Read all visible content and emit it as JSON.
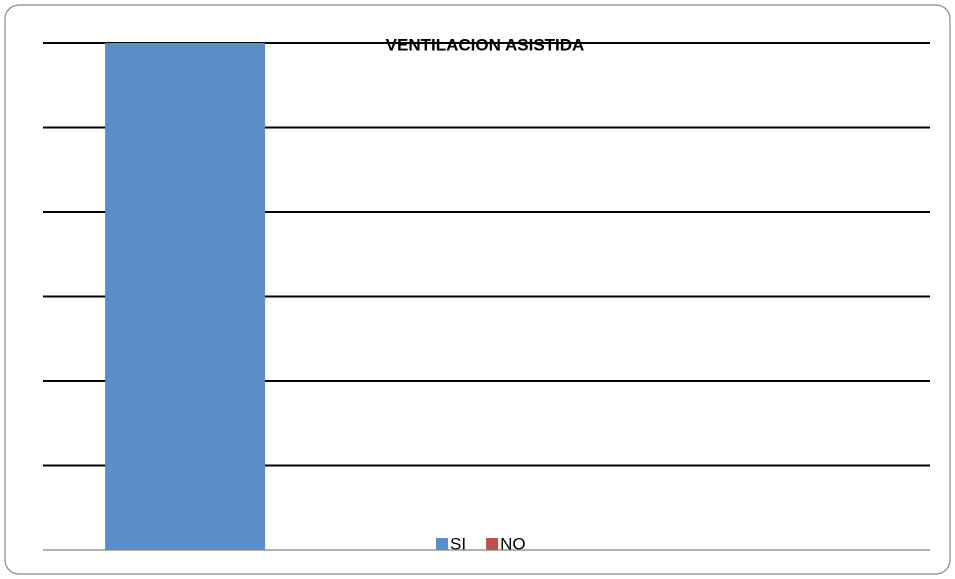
{
  "chart_data": {
    "type": "bar",
    "title": "VENTILACION ASISTIDA",
    "categories": [
      null
    ],
    "series": [
      {
        "name": "SI",
        "color": "#5b8dc9",
        "values": [
          6
        ]
      },
      {
        "name": "NO",
        "color": "#c0504d",
        "values": [
          0
        ]
      }
    ],
    "ylim": [
      0,
      6
    ],
    "yticks": [
      0,
      1,
      2,
      3,
      4,
      5,
      6
    ],
    "grid": true,
    "legend": "bottom"
  }
}
